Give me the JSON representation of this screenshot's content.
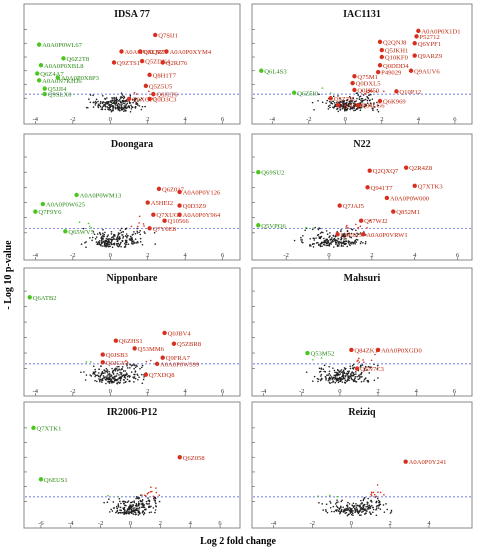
{
  "figure": {
    "ylabel": "- Log 10 p-value",
    "xlabel": "Log 2 fold change"
  },
  "colors": {
    "up": "#d7301f",
    "up_label": "#c0280f",
    "down": "#4cc61f",
    "down_label": "#2e8b1a",
    "neutral": "#222222",
    "threshold": "#3a4fd6",
    "frame": "#888888"
  },
  "chart_data": [
    {
      "type": "scatter",
      "title": "IDSA 77",
      "xlim": [
        -4.5,
        6.5
      ],
      "ylim": [
        0,
        6.4
      ],
      "xticks": [
        -4,
        -2,
        0,
        2,
        4,
        6
      ],
      "threshold": 1.3,
      "labels_up": [
        {
          "text": "Q7SIJ1",
          "x": 2.4,
          "y": 5.6
        },
        {
          "text": "A0A0P0XQR7",
          "x": 0.6,
          "y": 4.4
        },
        {
          "text": "Q8LNZ3",
          "x": 1.6,
          "y": 4.4
        },
        {
          "text": "A0A0P0XYM4",
          "x": 3.0,
          "y": 4.4
        },
        {
          "text": "Q5ZDX4",
          "x": 1.7,
          "y": 3.7
        },
        {
          "text": "Q2RJ76",
          "x": 2.8,
          "y": 3.6
        },
        {
          "text": "Q9ZTS1",
          "x": 0.2,
          "y": 3.6
        },
        {
          "text": "Q8H1T7",
          "x": 2.1,
          "y": 2.7
        },
        {
          "text": "Q5Z5U5",
          "x": 1.9,
          "y": 1.9
        },
        {
          "text": "Q0JLT6",
          "x": 2.3,
          "y": 1.3
        },
        {
          "text": "Q9XGP7",
          "x": 1.0,
          "y": 0.95
        },
        {
          "text": "Q0D3C3",
          "x": 2.1,
          "y": 0.95
        }
      ],
      "labels_down": [
        {
          "text": "A0A0P0WL67",
          "x": -3.8,
          "y": 4.9
        },
        {
          "text": "Q6Z2T8",
          "x": -2.5,
          "y": 3.9
        },
        {
          "text": "A0A0P0XBL8",
          "x": -3.7,
          "y": 3.4
        },
        {
          "text": "Q6Z4A7",
          "x": -3.9,
          "y": 2.8
        },
        {
          "text": "A0A0P0X8P3",
          "x": -2.8,
          "y": 2.5
        },
        {
          "text": "A0A0N7KHJ6",
          "x": -3.8,
          "y": 2.3
        },
        {
          "text": "Q5JJI4",
          "x": -3.5,
          "y": 1.7
        },
        {
          "text": "Q9SLX0",
          "x": -3.5,
          "y": 1.3
        }
      ]
    },
    {
      "type": "scatter",
      "title": "IAC1131",
      "xlim": [
        -5,
        6.5
      ],
      "ylim": [
        0,
        6.4
      ],
      "xticks": [
        -4,
        -2,
        0,
        2,
        4,
        6
      ],
      "threshold": 1.3,
      "labels_up": [
        {
          "text": "A0A0P0X1D1",
          "x": 4.0,
          "y": 5.9
        },
        {
          "text": "P52712",
          "x": 3.9,
          "y": 5.5
        },
        {
          "text": "Q2QNJ8",
          "x": 1.9,
          "y": 5.1
        },
        {
          "text": "Q6YPF1",
          "x": 3.8,
          "y": 5.0
        },
        {
          "text": "Q5JKH1",
          "x": 2.0,
          "y": 4.5
        },
        {
          "text": "Q10KF0",
          "x": 2.0,
          "y": 4.0
        },
        {
          "text": "Q9ARZ9",
          "x": 3.8,
          "y": 4.1
        },
        {
          "text": "Q0DDD4",
          "x": 1.9,
          "y": 3.4
        },
        {
          "text": "Q9AUV6",
          "x": 3.6,
          "y": 3.0
        },
        {
          "text": "P49029",
          "x": 1.8,
          "y": 2.9
        },
        {
          "text": "Q75M1",
          "x": 0.5,
          "y": 2.6
        },
        {
          "text": "Q0DXL5",
          "x": 0.4,
          "y": 2.1
        },
        {
          "text": "Q0HI50",
          "x": 0.5,
          "y": 1.6
        },
        {
          "text": "Q10P12",
          "x": 2.8,
          "y": 1.5
        },
        {
          "text": "Q5Z7I5",
          "x": -0.8,
          "y": 1.0
        },
        {
          "text": "Q6K969",
          "x": 1.9,
          "y": 0.8
        },
        {
          "text": "Q84LG6",
          "x": 0.7,
          "y": 0.5
        },
        {
          "text": "Q10N90",
          "x": -0.4,
          "y": 0.5
        }
      ],
      "labels_down": [
        {
          "text": "Q6L4S3",
          "x": -4.6,
          "y": 3.0
        },
        {
          "text": "Q6Z5I0",
          "x": -2.8,
          "y": 1.4
        }
      ]
    },
    {
      "type": "scatter",
      "title": "Doongara",
      "xlim": [
        -4.5,
        6.5
      ],
      "ylim": [
        0,
        6.2
      ],
      "xticks": [
        -4,
        -2,
        0,
        2,
        4,
        6
      ],
      "threshold": 1.3,
      "labels_up": [
        {
          "text": "Q6Z017",
          "x": 2.6,
          "y": 3.9
        },
        {
          "text": "A0A0P0Y126",
          "x": 3.7,
          "y": 3.7
        },
        {
          "text": "A5HEI2",
          "x": 2.0,
          "y": 3.0
        },
        {
          "text": "Q0D3Z9",
          "x": 3.7,
          "y": 2.8
        },
        {
          "text": "Q7XUG1",
          "x": 2.3,
          "y": 2.2
        },
        {
          "text": "A0A0P0Y964",
          "x": 3.7,
          "y": 2.2
        },
        {
          "text": "Q10566",
          "x": 2.9,
          "y": 1.8
        },
        {
          "text": "Q7Y0E8",
          "x": 2.1,
          "y": 1.3
        }
      ],
      "labels_down": [
        {
          "text": "A0A0P0WM13",
          "x": -1.8,
          "y": 3.5
        },
        {
          "text": "A0A0P0W625",
          "x": -3.6,
          "y": 2.9
        },
        {
          "text": "Q7F9Y6",
          "x": -4.0,
          "y": 2.4
        },
        {
          "text": "Q65WV5",
          "x": -2.4,
          "y": 1.1
        }
      ]
    },
    {
      "type": "scatter",
      "title": "N22",
      "xlim": [
        -3.5,
        6.3
      ],
      "ylim": [
        0,
        6.2
      ],
      "xticks": [
        -2,
        0,
        2,
        4,
        6
      ],
      "threshold": 1.3,
      "labels_up": [
        {
          "text": "Q2R4Z8",
          "x": 3.6,
          "y": 5.3
        },
        {
          "text": "Q2QXQ7",
          "x": 1.9,
          "y": 5.1
        },
        {
          "text": "Q7XTK3",
          "x": 4.0,
          "y": 4.1
        },
        {
          "text": "Q941T7",
          "x": 1.8,
          "y": 4.0
        },
        {
          "text": "A0A0P0W000",
          "x": 2.7,
          "y": 3.3
        },
        {
          "text": "Q7JAJ5",
          "x": 0.5,
          "y": 2.8
        },
        {
          "text": "Q852M1",
          "x": 3.0,
          "y": 2.4
        },
        {
          "text": "Q67WJ2",
          "x": 1.5,
          "y": 1.8
        },
        {
          "text": "Q0E0J3",
          "x": 0.4,
          "y": 0.9
        },
        {
          "text": "A0A0P0VRW1",
          "x": 1.6,
          "y": 0.9
        }
      ],
      "labels_down": [
        {
          "text": "Q69SU2",
          "x": -3.3,
          "y": 5.0
        },
        {
          "text": "Q5VPQ6",
          "x": -3.3,
          "y": 1.5
        }
      ]
    },
    {
      "type": "scatter",
      "title": "Nipponbare",
      "xlim": [
        -4.5,
        6.5
      ],
      "ylim": [
        0,
        6.2
      ],
      "xticks": [
        -4,
        -2,
        0,
        2,
        4,
        6
      ],
      "threshold": 1.3,
      "labels_up": [
        {
          "text": "Q0JBV4",
          "x": 2.9,
          "y": 3.3
        },
        {
          "text": "Q6ZHS1",
          "x": 0.3,
          "y": 2.8
        },
        {
          "text": "Q5ZBR8",
          "x": 3.4,
          "y": 2.6
        },
        {
          "text": "Q53MM6",
          "x": 1.3,
          "y": 2.3
        },
        {
          "text": "Q0JSB3",
          "x": -0.4,
          "y": 1.9
        },
        {
          "text": "Q9FRA7",
          "x": 2.8,
          "y": 1.7
        },
        {
          "text": "Q0JGY1",
          "x": -0.4,
          "y": 1.4
        },
        {
          "text": "A0A0P0W399",
          "x": 2.5,
          "y": 1.3
        },
        {
          "text": "Q7XDQ8",
          "x": 1.9,
          "y": 0.6
        }
      ],
      "labels_down": [
        {
          "text": "Q6ATB2",
          "x": -4.3,
          "y": 5.6
        }
      ]
    },
    {
      "type": "scatter",
      "title": "Mahsuri",
      "xlim": [
        -4.5,
        6.5
      ],
      "ylim": [
        0,
        6.2
      ],
      "xticks": [
        -4,
        -2,
        0,
        2,
        4,
        6
      ],
      "threshold": 1.3,
      "labels_up": [
        {
          "text": "Q84ZK1",
          "x": 0.6,
          "y": 2.2
        },
        {
          "text": "A0A0P0XGD0",
          "x": 2.0,
          "y": 2.2
        },
        {
          "text": "Q5N7C3",
          "x": 0.9,
          "y": 1.0
        }
      ],
      "labels_down": [
        {
          "text": "Q53M52",
          "x": -1.7,
          "y": 2.0
        }
      ]
    },
    {
      "type": "scatter",
      "title": "IR2006-P12",
      "xlim": [
        -7,
        6.8
      ],
      "ylim": [
        0,
        6.4
      ],
      "xticks": [
        -6,
        -4,
        -2,
        0,
        2,
        4,
        6
      ],
      "threshold": 1.3,
      "labels_up": [
        {
          "text": "Q6Z058",
          "x": 3.3,
          "y": 4.0
        }
      ],
      "labels_down": [
        {
          "text": "Q7XTK1",
          "x": -6.5,
          "y": 6.0
        },
        {
          "text": "Q6EUS1",
          "x": -6.0,
          "y": 2.5
        }
      ]
    },
    {
      "type": "scatter",
      "title": "Reiziq",
      "xlim": [
        -5,
        5.8
      ],
      "ylim": [
        0,
        6.4
      ],
      "xticks": [
        -4,
        -2,
        0,
        2,
        4
      ],
      "threshold": 1.3,
      "labels_up": [
        {
          "text": "A0A0P0Y241",
          "x": 2.8,
          "y": 3.7
        }
      ],
      "labels_down": []
    }
  ]
}
